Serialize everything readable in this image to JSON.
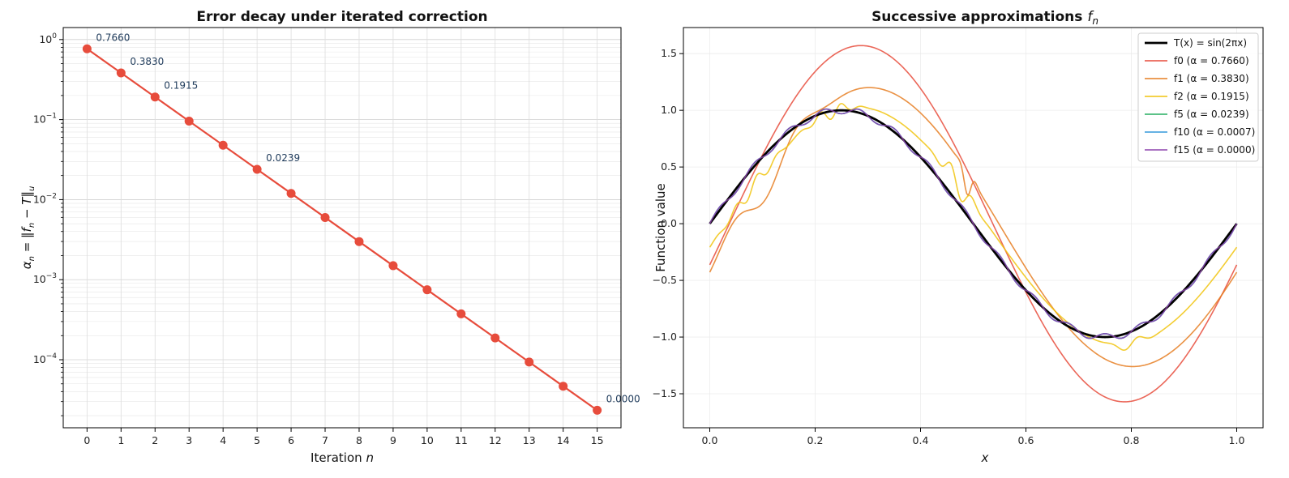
{
  "chart_data": [
    {
      "type": "line",
      "title": "Error decay under iterated correction",
      "xlabel": "Iteration n",
      "ylabel": "αn = ‖fn − T‖u",
      "yscale": "log",
      "xlim": [
        -0.7,
        15.7
      ],
      "ylim_log10": [
        -4.85,
        0.15
      ],
      "x_ticks": [
        "0",
        "1",
        "2",
        "3",
        "4",
        "5",
        "6",
        "7",
        "8",
        "9",
        "10",
        "11",
        "12",
        "13",
        "14",
        "15"
      ],
      "y_ticks": [
        {
          "base": "10",
          "exp": "0",
          "value_log10": 0
        },
        {
          "base": "10",
          "exp": "−1",
          "value_log10": -1
        },
        {
          "base": "10",
          "exp": "−2",
          "value_log10": -2
        },
        {
          "base": "10",
          "exp": "−3",
          "value_log10": -3
        },
        {
          "base": "10",
          "exp": "−4",
          "value_log10": -4
        }
      ],
      "grid": true,
      "color": "#e74c3c",
      "series": [
        {
          "x": [
            0,
            1,
            2,
            3,
            4,
            5,
            6,
            7,
            8,
            9,
            10,
            11,
            12,
            13,
            14,
            15
          ],
          "y": [
            0.766,
            0.383,
            0.1915,
            0.09575,
            0.04788,
            0.02394,
            0.01197,
            0.005984,
            0.002992,
            0.001496,
            0.000748,
            0.000374,
            0.000187,
            9.35e-05,
            4.67e-05,
            2.34e-05
          ]
        }
      ],
      "annotations": [
        {
          "x": 0,
          "y": 0.766,
          "text": "0.7660"
        },
        {
          "x": 1,
          "y": 0.383,
          "text": "0.3830"
        },
        {
          "x": 2,
          "y": 0.1915,
          "text": "0.1915"
        },
        {
          "x": 5,
          "y": 0.02394,
          "text": "0.0239"
        },
        {
          "x": 15,
          "y": 2.34e-05,
          "text": "0.0000"
        }
      ]
    },
    {
      "type": "line",
      "title": "Successive approximations fn",
      "xlabel": "x",
      "ylabel": "Function value",
      "xlim": [
        -0.05,
        1.05
      ],
      "ylim": [
        -1.8,
        1.73
      ],
      "x_ticks": [
        "0.0",
        "0.2",
        "0.4",
        "0.6",
        "0.8",
        "1.0"
      ],
      "y_ticks": [
        "1.5",
        "1.0",
        "0.5",
        "0.0",
        "−0.5",
        "−1.0",
        "−1.5"
      ],
      "grid": true,
      "legend_position": "top-right",
      "series": [
        {
          "name": "T(x) = sin(2πx)",
          "color": "#000000",
          "n": -1
        },
        {
          "name": "f0  (α = 0.7660)",
          "color": "#e74c3c",
          "n": 0
        },
        {
          "name": "f1  (α = 0.3830)",
          "color": "#e67e22",
          "n": 1
        },
        {
          "name": "f2  (α = 0.1915)",
          "color": "#f1c40f",
          "n": 2
        },
        {
          "name": "f5  (α = 0.0239)",
          "color": "#27ae60",
          "n": 5
        },
        {
          "name": "f10  (α = 0.0007)",
          "color": "#3498db",
          "n": 10
        },
        {
          "name": "f15  (α = 0.0000)",
          "color": "#8e44ad",
          "n": 15
        }
      ]
    }
  ]
}
